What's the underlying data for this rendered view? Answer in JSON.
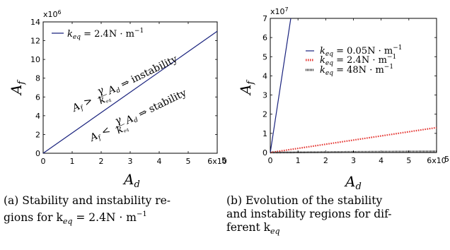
{
  "chart_data": [
    {
      "type": "line",
      "xlabel": "A_d",
      "ylabel": "A_f",
      "x_exponent": "6x10^5",
      "y_exponent": "x10^6",
      "xlim": [
        0,
        600000
      ],
      "ylim": [
        0,
        14000000
      ],
      "x_ticks": [
        "0",
        "1",
        "2",
        "3",
        "4",
        "5",
        "6x10"
      ],
      "x_tick_values": [
        0,
        100000,
        200000,
        300000,
        400000,
        500000,
        600000
      ],
      "y_ticks": [
        "0",
        "2",
        "4",
        "6",
        "8",
        "10",
        "12",
        "14"
      ],
      "y_tick_values": [
        0,
        2000000,
        4000000,
        6000000,
        8000000,
        10000000,
        12000000,
        14000000
      ],
      "series": [
        {
          "name": "k_eq = 2.4N·m^-1",
          "style": "solid",
          "color": "#1a237e",
          "x": [
            0,
            600000
          ],
          "y": [
            0,
            13000000
          ]
        }
      ],
      "annotations": [
        {
          "text": "A_f > (γ/k_eq) A_d ⇒ instability",
          "region": "above line"
        },
        {
          "text": "A_f < (γ/k_eq) A_d ⇒ stability",
          "region": "below line"
        }
      ],
      "legend_position": "top-left",
      "caption": "(a) Stability and instability regions for k_eq = 2.4N·m^-1"
    },
    {
      "type": "line",
      "xlabel": "A_d",
      "ylabel": "A_f",
      "x_exponent": "6x10^5",
      "y_exponent": "x10^7",
      "xlim": [
        0,
        600000
      ],
      "ylim": [
        0,
        70000000
      ],
      "x_ticks": [
        "0",
        "1",
        "2",
        "3",
        "4",
        "5",
        "6x10"
      ],
      "x_tick_values": [
        0,
        100000,
        200000,
        300000,
        400000,
        500000,
        600000
      ],
      "y_ticks": [
        "0",
        "1",
        "2",
        "3",
        "4",
        "5",
        "6",
        "7"
      ],
      "y_tick_values": [
        0,
        10000000,
        20000000,
        30000000,
        40000000,
        50000000,
        60000000,
        70000000
      ],
      "series": [
        {
          "name": "k_eq = 0.05N·m^-1",
          "style": "solid",
          "color": "#1a237e",
          "x": [
            0,
            74000
          ],
          "y": [
            0,
            70000000
          ]
        },
        {
          "name": "k_eq = 2.4N·m^-1",
          "style": "dotted",
          "color": "#e53935",
          "x": [
            0,
            600000
          ],
          "y": [
            0,
            13000000
          ]
        },
        {
          "name": "k_eq = 48N·m^-1",
          "style": "dashed",
          "color": "#222222",
          "x": [
            0,
            600000
          ],
          "y": [
            0,
            625000
          ]
        }
      ],
      "legend_position": "right",
      "caption": "(b) Evolution of the stability and instability regions for different k_eq"
    }
  ],
  "captions": {
    "a_line1": "(a) Stability and instability re-",
    "a_line2": "gions for k",
    "b_line1": "(b) Evolution of the stability",
    "b_line2": "and instability regions for dif-",
    "b_line3": "ferent k"
  }
}
